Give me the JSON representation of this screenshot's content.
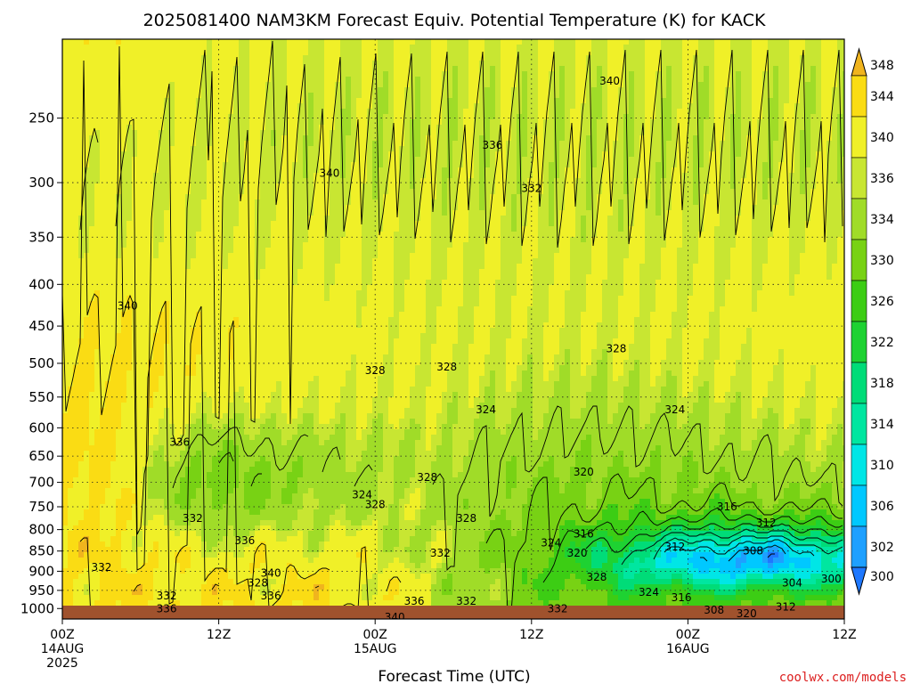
{
  "chart_data": {
    "type": "heatmap",
    "title": "2025081400 NAM3KM Forecast Equiv. Potential Temperature (K) for KACK",
    "xlabel": "Forecast Time (UTC)",
    "ylabel": "",
    "x_hours_range": [
      0,
      60
    ],
    "x_ticks": [
      {
        "hour": 0,
        "lines": [
          "00Z",
          "14AUG",
          "2025"
        ]
      },
      {
        "hour": 12,
        "lines": [
          "12Z"
        ]
      },
      {
        "hour": 24,
        "lines": [
          "00Z",
          "15AUG"
        ]
      },
      {
        "hour": 36,
        "lines": [
          "12Z"
        ]
      },
      {
        "hour": 48,
        "lines": [
          "00Z",
          "16AUG"
        ]
      },
      {
        "hour": 60,
        "lines": [
          "12Z"
        ]
      }
    ],
    "y_scale": "log",
    "y_range_hpa": [
      1030,
      200
    ],
    "y_ticks": [
      250,
      300,
      350,
      400,
      450,
      500,
      550,
      600,
      650,
      700,
      750,
      800,
      850,
      900,
      950,
      1000
    ],
    "grid": true,
    "colorbar": {
      "levels": [
        300,
        302,
        306,
        310,
        314,
        318,
        322,
        326,
        330,
        334,
        336,
        340,
        344,
        348
      ],
      "labels": [
        "300",
        "302",
        "306",
        "310",
        "314",
        "318",
        "322",
        "326",
        "330",
        "334",
        "336",
        "340",
        "344",
        "348"
      ],
      "colors": [
        "#1e78ff",
        "#1ea0ff",
        "#00c8ff",
        "#00e6e6",
        "#00e6a0",
        "#00dc78",
        "#1ed232",
        "#3ccd14",
        "#78d214",
        "#a0dc28",
        "#c8e632",
        "#f0f028",
        "#fadc14",
        "#f0b41e"
      ],
      "extend": "both"
    },
    "contour_labels": [
      {
        "hour": 42,
        "hpa": 225,
        "text": "340"
      },
      {
        "hour": 33,
        "hpa": 270,
        "text": "336"
      },
      {
        "hour": 20.5,
        "hpa": 292,
        "text": "340"
      },
      {
        "hour": 36,
        "hpa": 305,
        "text": "332"
      },
      {
        "hour": 5,
        "hpa": 425,
        "text": "340"
      },
      {
        "hour": 42.5,
        "hpa": 480,
        "text": "328"
      },
      {
        "hour": 24,
        "hpa": 510,
        "text": "328"
      },
      {
        "hour": 29.5,
        "hpa": 505,
        "text": "328"
      },
      {
        "hour": 32.5,
        "hpa": 570,
        "text": "324"
      },
      {
        "hour": 47,
        "hpa": 570,
        "text": "324"
      },
      {
        "hour": 9,
        "hpa": 625,
        "text": "336"
      },
      {
        "hour": 40,
        "hpa": 680,
        "text": "320"
      },
      {
        "hour": 28,
        "hpa": 690,
        "text": "328"
      },
      {
        "hour": 23,
        "hpa": 725,
        "text": "324"
      },
      {
        "hour": 24,
        "hpa": 745,
        "text": "328"
      },
      {
        "hour": 31,
        "hpa": 775,
        "text": "328"
      },
      {
        "hour": 10,
        "hpa": 775,
        "text": "332"
      },
      {
        "hour": 51,
        "hpa": 750,
        "text": "316"
      },
      {
        "hour": 54,
        "hpa": 785,
        "text": "312"
      },
      {
        "hour": 40,
        "hpa": 810,
        "text": "316"
      },
      {
        "hour": 14,
        "hpa": 825,
        "text": "336"
      },
      {
        "hour": 37.5,
        "hpa": 830,
        "text": "324"
      },
      {
        "hour": 47,
        "hpa": 840,
        "text": "312"
      },
      {
        "hour": 39.5,
        "hpa": 855,
        "text": "320"
      },
      {
        "hour": 29,
        "hpa": 855,
        "text": "332"
      },
      {
        "hour": 53,
        "hpa": 850,
        "text": "308"
      },
      {
        "hour": 3,
        "hpa": 890,
        "text": "332"
      },
      {
        "hour": 16,
        "hpa": 905,
        "text": "340"
      },
      {
        "hour": 41,
        "hpa": 915,
        "text": "328"
      },
      {
        "hour": 15,
        "hpa": 930,
        "text": "328"
      },
      {
        "hour": 56,
        "hpa": 930,
        "text": "304"
      },
      {
        "hour": 59,
        "hpa": 920,
        "text": "300"
      },
      {
        "hour": 45,
        "hpa": 955,
        "text": "324"
      },
      {
        "hour": 8,
        "hpa": 965,
        "text": "332"
      },
      {
        "hour": 16,
        "hpa": 965,
        "text": "336"
      },
      {
        "hour": 47.5,
        "hpa": 970,
        "text": "316"
      },
      {
        "hour": 27,
        "hpa": 980,
        "text": "336"
      },
      {
        "hour": 31,
        "hpa": 980,
        "text": "332"
      },
      {
        "hour": 55.5,
        "hpa": 995,
        "text": "312"
      },
      {
        "hour": 8,
        "hpa": 1000,
        "text": "336"
      },
      {
        "hour": 38,
        "hpa": 1000,
        "text": "332"
      },
      {
        "hour": 50,
        "hpa": 1005,
        "text": "308"
      },
      {
        "hour": 52.5,
        "hpa": 1015,
        "text": "320"
      },
      {
        "hour": 25.5,
        "hpa": 1025,
        "text": "340"
      }
    ]
  },
  "credit": "coolwx.com/models",
  "colors": {
    "ground": "#a0522d",
    "credit": "#dc1e1e"
  }
}
